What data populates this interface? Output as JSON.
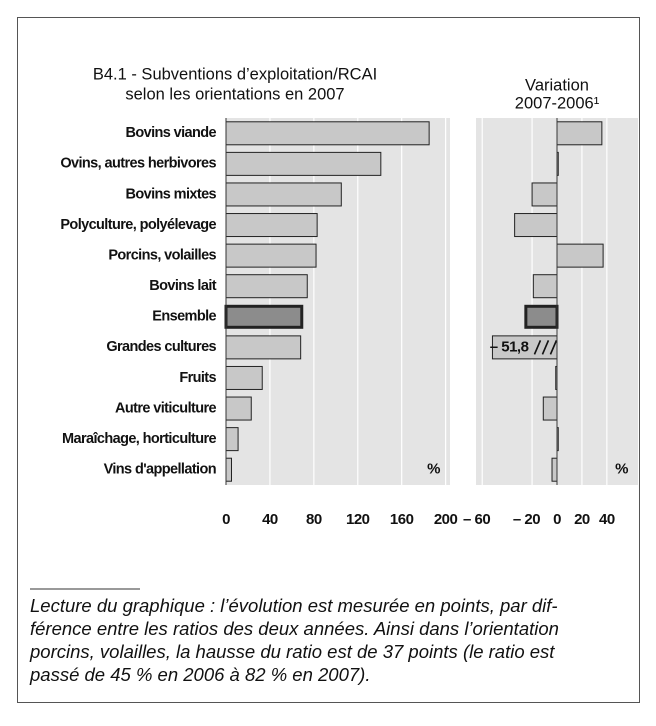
{
  "chart_data": [
    {
      "type": "barh",
      "title": [
        "B4.1 - Subventions d’exploitation/RCAI",
        "selon les orientations en 2007"
      ],
      "unit": "%",
      "categories": [
        "Bovins viande",
        "Ovins, autres herbivores",
        "Bovins mixtes",
        "Polyculture, polyélevage",
        "Porcins, volailles",
        "Bovins lait",
        "Ensemble",
        "Grandes cultures",
        "Fruits",
        "Autre viticulture",
        "Maraîchage, horticulture",
        "Vins d'appellation"
      ],
      "values": [
        185,
        141,
        105,
        83,
        82,
        74,
        69,
        68,
        33,
        23,
        11,
        5
      ],
      "color": "#c8c8c8",
      "highlight": "Ensemble",
      "highlight_color": "#8c8c8c",
      "xlim": [
        0,
        204
      ],
      "xticks": [
        0,
        40,
        80,
        120,
        160,
        200
      ],
      "grid": true
    },
    {
      "type": "barh",
      "title": [
        "Variation",
        "2007-2006¹"
      ],
      "unit": "%",
      "values": [
        36,
        1,
        -20,
        -34,
        37,
        -19,
        -25,
        -51.8,
        -1,
        -11,
        1,
        -4
      ],
      "value_labels": [
        null,
        null,
        null,
        null,
        null,
        null,
        null,
        "– 51,8",
        null,
        null,
        null,
        null
      ],
      "color": "#c8c8c8",
      "highlight_color": "#8c8c8c",
      "xlim": [
        -65,
        65
      ],
      "xticks": [
        {
          "value": -60,
          "label": "– 60"
        },
        {
          "value": -20,
          "label": "– 20"
        },
        0,
        20,
        40
      ],
      "grid": true
    }
  ],
  "note": [
    "Lecture du graphique : l’évolution est mesurée en points, par dif-",
    "férence entre les ratios des deux années. Ainsi dans l’orientation",
    "porcins, volailles, la hausse du ratio est de 37 points (le ratio est",
    "passé de 45 % en 2006 à 82 % en 2007)."
  ]
}
